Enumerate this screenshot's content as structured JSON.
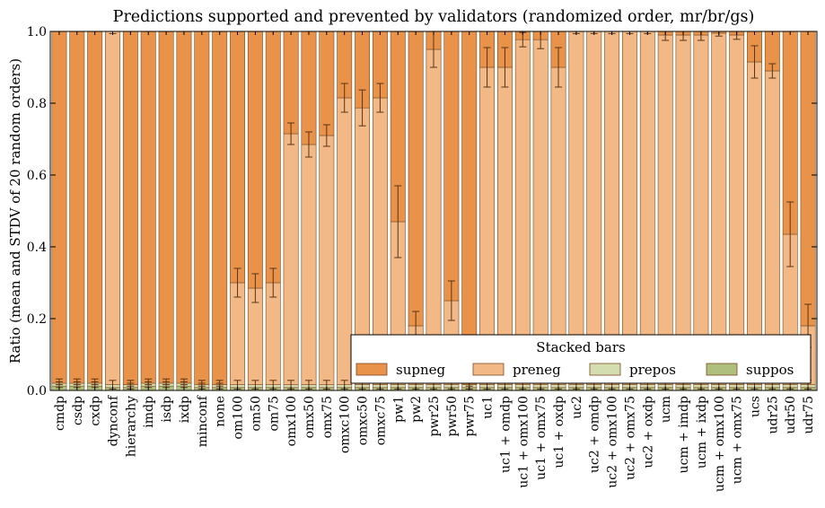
{
  "chart_data": {
    "type": "bar",
    "stacked": true,
    "title": "Predictions supported and prevented by validators (randomized order, mr/br/gs)",
    "xlabel": "",
    "ylabel": "Ratio (mean and STDV of 20 random orders)",
    "ylim": [
      0,
      1.0
    ],
    "yticks": [
      "0.0",
      "0.2",
      "0.4",
      "0.6",
      "0.8",
      "1.0"
    ],
    "grid": false,
    "legend": {
      "title": "Stacked bars",
      "position": "lower-right"
    },
    "colors": {
      "supneg": "#e8924a",
      "preneg": "#f2b885",
      "prepos": "#d3ddb0",
      "suppos": "#afbf7d",
      "edge": "#7a4a20"
    },
    "categories": [
      "cmdp",
      "csdp",
      "cxdp",
      "dynconf",
      "hierarchy",
      "imdp",
      "isdp",
      "ixdp",
      "minconf",
      "none",
      "om100",
      "om50",
      "om75",
      "omx100",
      "omx50",
      "omx75",
      "omxc100",
      "omxc50",
      "omxc75",
      "pw1",
      "pw2",
      "pwr25",
      "pwr50",
      "pwr75",
      "uc1",
      "uc1 + omdp",
      "uc1 + omx100",
      "uc1 + omx75",
      "uc1 + oxdp",
      "uc2",
      "uc2 + omdp",
      "uc2 + omx100",
      "uc2 + omx75",
      "uc2 + oxdp",
      "ucm",
      "ucm + imdp",
      "ucm + ixdp",
      "ucm + omx100",
      "ucm + omx75",
      "ucs",
      "udr25",
      "udr50",
      "udr75"
    ],
    "series": [
      {
        "name": "suppos",
        "values": [
          0.012,
          0.012,
          0.012,
          0.008,
          0.008,
          0.012,
          0.012,
          0.012,
          0.008,
          0.008,
          0.008,
          0.008,
          0.008,
          0.008,
          0.008,
          0.008,
          0.008,
          0.008,
          0.008,
          0.008,
          0.008,
          0.008,
          0.008,
          0.008,
          0.008,
          0.008,
          0.008,
          0.008,
          0.008,
          0.008,
          0.008,
          0.008,
          0.008,
          0.008,
          0.008,
          0.008,
          0.008,
          0.008,
          0.008,
          0.008,
          0.008,
          0.008,
          0.008
        ]
      },
      {
        "name": "prepos",
        "values": [
          0.008,
          0.008,
          0.008,
          0.008,
          0.008,
          0.008,
          0.008,
          0.008,
          0.008,
          0.008,
          0.008,
          0.008,
          0.008,
          0.008,
          0.008,
          0.008,
          0.008,
          0.008,
          0.008,
          0.008,
          0.008,
          0.008,
          0.008,
          0.008,
          0.008,
          0.008,
          0.008,
          0.008,
          0.008,
          0.008,
          0.008,
          0.008,
          0.008,
          0.008,
          0.008,
          0.008,
          0.008,
          0.008,
          0.008,
          0.008,
          0.008,
          0.008,
          0.008
        ]
      },
      {
        "name": "preneg",
        "values": [
          0,
          0,
          0,
          0.984,
          0,
          0,
          0,
          0,
          0,
          0,
          0.284,
          0.269,
          0.284,
          0.699,
          0.669,
          0.694,
          0.799,
          0.771,
          0.799,
          0.454,
          0.164,
          0.934,
          0.234,
          0,
          0.884,
          0.884,
          0.961,
          0.961,
          0.884,
          0.984,
          0.984,
          0.984,
          0.984,
          0.984,
          0.974,
          0.974,
          0.974,
          0.979,
          0.974,
          0.899,
          0.874,
          0.419,
          0.164
        ]
      },
      {
        "name": "supneg",
        "values": [
          0.98,
          0.98,
          0.98,
          0,
          0.984,
          0.98,
          0.98,
          0.98,
          0.984,
          0.984,
          0.7,
          0.715,
          0.7,
          0.285,
          0.315,
          0.29,
          0.185,
          0.213,
          0.185,
          0.53,
          0.82,
          0.05,
          0.75,
          0.984,
          0.1,
          0.1,
          0.023,
          0.023,
          0.1,
          0,
          0,
          0,
          0,
          0,
          0.01,
          0.01,
          0.01,
          0.005,
          0.01,
          0.085,
          0.11,
          0.565,
          0.82
        ]
      }
    ],
    "error_bars": {
      "bottom_std": 0.012,
      "top_std": [
        0.004,
        0.004,
        0.004,
        0.006,
        0.004,
        0.004,
        0.004,
        0.004,
        0.004,
        0.004,
        0.04,
        0.04,
        0.04,
        0.03,
        0.035,
        0.03,
        0.04,
        0.05,
        0.04,
        0.1,
        0.04,
        0.05,
        0.055,
        0.004,
        0.055,
        0.055,
        0.02,
        0.025,
        0.055,
        0.006,
        0.006,
        0.006,
        0.006,
        0.006,
        0.015,
        0.015,
        0.015,
        0.008,
        0.012,
        0.045,
        0.02,
        0.09,
        0.06
      ]
    }
  }
}
